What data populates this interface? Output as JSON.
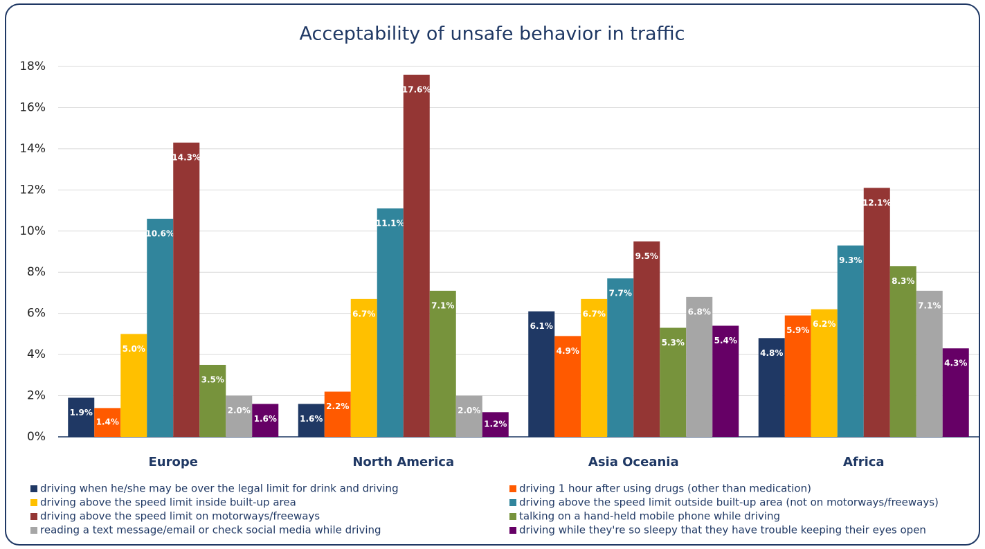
{
  "chart_data": {
    "type": "bar",
    "title": "Acceptability of unsafe behavior in traffic",
    "categories": [
      "Europe",
      "North America",
      "Asia Oceania",
      "Africa"
    ],
    "ylim": [
      0,
      18
    ],
    "yticks": [
      {
        "value": 0,
        "label": "0%"
      },
      {
        "value": 2,
        "label": "2%"
      },
      {
        "value": 4,
        "label": "4%"
      },
      {
        "value": 6,
        "label": "6%"
      },
      {
        "value": 8,
        "label": "8%"
      },
      {
        "value": 10,
        "label": "10%"
      },
      {
        "value": 12,
        "label": "12%"
      },
      {
        "value": 14,
        "label": "14%"
      },
      {
        "value": 16,
        "label": "16%"
      },
      {
        "value": 18,
        "label": "18%"
      }
    ],
    "grid": true,
    "legend": "bottom",
    "series": [
      {
        "name": "driving when he/she may be over the legal limit for drink and driving",
        "color": "#1f3864",
        "values": [
          1.9,
          1.6,
          6.1,
          4.8
        ],
        "value_labels": [
          "1.9%",
          "1.6%",
          "6.1%",
          "4.8%"
        ]
      },
      {
        "name": "driving 1 hour after using drugs (other than medication)",
        "color": "#ff5a00",
        "values": [
          1.4,
          2.2,
          4.9,
          5.9
        ],
        "value_labels": [
          "1.4%",
          "2.2%",
          "4.9%",
          "5.9%"
        ]
      },
      {
        "name": "driving above the speed limit inside built-up area",
        "color": "#ffc000",
        "values": [
          5.0,
          6.7,
          6.7,
          6.2
        ],
        "value_labels": [
          "5.0%",
          "6.7%",
          "6.7%",
          "6.2%"
        ]
      },
      {
        "name": "driving above the speed limit outside built-up area (not on motorways/freeways)",
        "color": "#31859c",
        "values": [
          10.6,
          11.1,
          7.7,
          9.3
        ],
        "value_labels": [
          "10.6%",
          "11.1%",
          "7.7%",
          "9.3%"
        ]
      },
      {
        "name": "driving above the speed limit on motorways/freeways",
        "color": "#943634",
        "values": [
          14.3,
          17.6,
          9.5,
          12.1
        ],
        "value_labels": [
          "14.3%",
          "17.6%",
          "9.5%",
          "12.1%"
        ]
      },
      {
        "name": "talking on a hand-held mobile phone while driving",
        "color": "#77933c",
        "values": [
          3.5,
          7.1,
          5.3,
          8.3
        ],
        "value_labels": [
          "3.5%",
          "7.1%",
          "5.3%",
          "8.3%"
        ]
      },
      {
        "name": "reading a text message/email or check social media while driving",
        "color": "#a6a6a6",
        "values": [
          2.0,
          2.0,
          6.8,
          7.1
        ],
        "value_labels": [
          "2.0%",
          "2.0%",
          "6.8%",
          "7.1%"
        ]
      },
      {
        "name": "driving while they're so sleepy that they have trouble keeping their eyes open",
        "color": "#660066",
        "values": [
          1.6,
          1.2,
          5.4,
          4.3
        ],
        "value_labels": [
          "1.6%",
          "1.2%",
          "5.4%",
          "4.3%"
        ]
      }
    ]
  }
}
